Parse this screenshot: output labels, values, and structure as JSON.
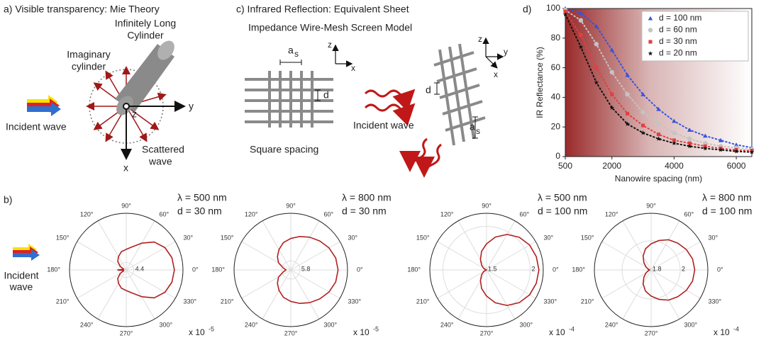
{
  "panel_a": {
    "title": "a) Visible transparency: Mie Theory",
    "cylinder_label": [
      "Infinitely Long",
      "Cylinder"
    ],
    "imaginary_label": [
      "Imaginary",
      "cylinder"
    ],
    "incident_label": "Incident wave",
    "scattered_label": [
      "Scattered",
      "wave"
    ],
    "axes": [
      "y",
      "z",
      "x"
    ]
  },
  "panel_c": {
    "title": [
      "c) Infrared Reflection: Equivalent Sheet",
      "Impedance Wire-Mesh Screen Model"
    ],
    "spacing_symbol": "a",
    "spacing_subscript": "s",
    "diameter_symbol": "d",
    "square_label": "Square spacing",
    "incident_label": "Incident wave",
    "axes_left": [
      "z",
      "x"
    ],
    "axes_right": [
      "z",
      "y",
      "x"
    ]
  },
  "panel_b": {
    "label": "b)",
    "incident_label": [
      "Incident",
      "wave"
    ]
  },
  "panel_d": {
    "label": "d)"
  },
  "chart_data": [
    {
      "type": "line",
      "xlabel": "Nanowire spacing (nm)",
      "ylabel": "IR Reflectance (%)",
      "x": [
        500,
        1000,
        1500,
        2000,
        2500,
        3000,
        3500,
        4000,
        4500,
        5000,
        5500,
        6000,
        6500
      ],
      "xlim": [
        500,
        6500
      ],
      "xticks": [
        500,
        2000,
        4000,
        6000
      ],
      "ylim": [
        0,
        100
      ],
      "yticks": [
        0,
        20,
        40,
        60,
        80,
        100
      ],
      "legend": "upper right",
      "series": [
        {
          "name": "d = 100 nm",
          "color": "#3355dd",
          "marker": "triangle",
          "values": [
            100,
            97,
            88,
            72,
            55,
            42,
            32,
            24,
            18,
            14,
            11,
            8,
            6
          ]
        },
        {
          "name": "d = 60 nm",
          "color": "#c4c4c4",
          "marker": "circle",
          "values": [
            99,
            92,
            76,
            57,
            42,
            30,
            22,
            16,
            12,
            9,
            7,
            6,
            5
          ]
        },
        {
          "name": "d = 30 nm",
          "color": "#e04040",
          "marker": "square",
          "values": [
            98,
            82,
            60,
            42,
            29,
            21,
            15,
            11,
            9,
            7,
            5.5,
            4.5,
            4
          ]
        },
        {
          "name": "d = 20 nm",
          "color": "#111111",
          "marker": "star",
          "values": [
            96,
            74,
            50,
            33,
            22,
            16,
            12,
            9,
            7,
            5.5,
            4.5,
            3.5,
            3
          ]
        }
      ]
    },
    {
      "type": "polar",
      "annotation": [
        "λ = 500 nm",
        "d = 30 nm"
      ],
      "multiplier": "x 10",
      "exponent": "-5",
      "color": "#b02020",
      "theta": [
        0,
        15,
        30,
        45,
        60,
        75,
        90,
        105,
        120,
        135,
        150,
        165,
        180,
        195,
        210,
        225,
        240,
        255,
        270,
        285,
        300,
        315,
        330,
        345
      ],
      "values": [
        28,
        27.5,
        26,
        23,
        18,
        14,
        12,
        11,
        9,
        7,
        4,
        1.5,
        5,
        1.5,
        4,
        7,
        9,
        11,
        12,
        14,
        18,
        23,
        26,
        27.5
      ],
      "rlim": [
        0,
        33
      ],
      "rticks": [
        4.4
      ],
      "thetaticks": [
        {
          "value": 0,
          "label": "0°"
        },
        {
          "value": 30,
          "label": "30°"
        },
        {
          "value": 60,
          "label": "60°"
        },
        {
          "value": 90,
          "label": "90°"
        },
        {
          "value": 120,
          "label": "120°"
        },
        {
          "value": 150,
          "label": "150°"
        },
        {
          "value": 180,
          "label": "180°"
        },
        {
          "value": 210,
          "label": "210°"
        },
        {
          "value": 240,
          "label": "240°"
        },
        {
          "value": 270,
          "label": "270°"
        },
        {
          "value": 300,
          "label": "300°"
        },
        {
          "value": 330,
          "label": "330°"
        }
      ]
    },
    {
      "type": "polar",
      "annotation": [
        "λ = 800 nm",
        "d = 30 nm"
      ],
      "multiplier": "x 10",
      "exponent": "-5",
      "color": "#b02020",
      "theta": [
        0,
        15,
        30,
        45,
        60,
        75,
        90,
        105,
        120,
        135,
        150,
        165,
        180,
        195,
        210,
        225,
        240,
        255,
        270,
        285,
        300,
        315,
        330,
        345
      ],
      "values": [
        30,
        29.5,
        28,
        26,
        24,
        22,
        20,
        18,
        15,
        12,
        9,
        5,
        3,
        5,
        9,
        12,
        15,
        18,
        20,
        22,
        24,
        26,
        28,
        29.5
      ],
      "rlim": [
        0,
        36
      ],
      "rticks": [
        5.8
      ],
      "thetaticks": [
        {
          "value": 0,
          "label": "0°"
        },
        {
          "value": 30,
          "label": "30°"
        },
        {
          "value": 60,
          "label": "60°"
        },
        {
          "value": 90,
          "label": "90°"
        },
        {
          "value": 120,
          "label": "120°"
        },
        {
          "value": 150,
          "label": "150°"
        },
        {
          "value": 180,
          "label": "180°"
        },
        {
          "value": 210,
          "label": "210°"
        },
        {
          "value": 240,
          "label": "240°"
        },
        {
          "value": 270,
          "label": "270°"
        },
        {
          "value": 300,
          "label": "300°"
        },
        {
          "value": 330,
          "label": "330°"
        }
      ]
    },
    {
      "type": "polar",
      "annotation": [
        "λ = 500 nm",
        "d = 100 nm"
      ],
      "multiplier": "x 10",
      "exponent": "-4",
      "color": "#b02020",
      "theta": [
        0,
        15,
        30,
        45,
        60,
        75,
        90,
        105,
        120,
        135,
        150,
        165,
        180,
        195,
        210,
        225,
        240,
        255,
        270,
        285,
        300,
        315,
        330,
        345
      ],
      "values": [
        2.1,
        2.09,
        2.07,
        2.03,
        1.97,
        1.89,
        1.8,
        1.72,
        1.64,
        1.58,
        1.54,
        1.51,
        1.5,
        1.51,
        1.54,
        1.58,
        1.64,
        1.72,
        1.8,
        1.89,
        1.97,
        2.03,
        2.07,
        2.09
      ],
      "rlim": [
        1.5,
        2.15
      ],
      "rticks": [
        1.5,
        2
      ],
      "thetaticks": [
        {
          "value": 0,
          "label": "0°"
        },
        {
          "value": 30,
          "label": "30°"
        },
        {
          "value": 60,
          "label": "60°"
        },
        {
          "value": 90,
          "label": "90°"
        },
        {
          "value": 120,
          "label": "120°"
        },
        {
          "value": 150,
          "label": "150°"
        },
        {
          "value": 180,
          "label": "180°"
        },
        {
          "value": 210,
          "label": "210°"
        },
        {
          "value": 240,
          "label": "240°"
        },
        {
          "value": 270,
          "label": "270°"
        },
        {
          "value": 300,
          "label": "300°"
        },
        {
          "value": 330,
          "label": "330°"
        }
      ]
    },
    {
      "type": "polar",
      "annotation": [
        "λ = 800 nm",
        "d = 100 nm"
      ],
      "multiplier": "x 10",
      "exponent": "-4",
      "color": "#b02020",
      "theta": [
        0,
        15,
        30,
        45,
        60,
        75,
        90,
        105,
        120,
        135,
        150,
        165,
        180,
        195,
        210,
        225,
        240,
        255,
        270,
        285,
        300,
        315,
        330,
        345
      ],
      "values": [
        2.1,
        2.095,
        2.08,
        2.06,
        2.04,
        2.01,
        1.98,
        1.95,
        1.91,
        1.87,
        1.84,
        1.82,
        1.81,
        1.82,
        1.84,
        1.87,
        1.91,
        1.95,
        1.98,
        2.01,
        2.04,
        2.06,
        2.08,
        2.095
      ],
      "rlim": [
        1.8,
        2.19
      ],
      "rticks": [
        1.8,
        2
      ],
      "thetaticks": [
        {
          "value": 0,
          "label": "0°"
        },
        {
          "value": 30,
          "label": "30°"
        },
        {
          "value": 60,
          "label": "60°"
        },
        {
          "value": 90,
          "label": "90°"
        },
        {
          "value": 120,
          "label": "120°"
        },
        {
          "value": 150,
          "label": "150°"
        },
        {
          "value": 180,
          "label": "180°"
        },
        {
          "value": 210,
          "label": "210°"
        },
        {
          "value": 240,
          "label": "240°"
        },
        {
          "value": 270,
          "label": "270°"
        },
        {
          "value": 300,
          "label": "300°"
        },
        {
          "value": 330,
          "label": "330°"
        }
      ]
    }
  ]
}
